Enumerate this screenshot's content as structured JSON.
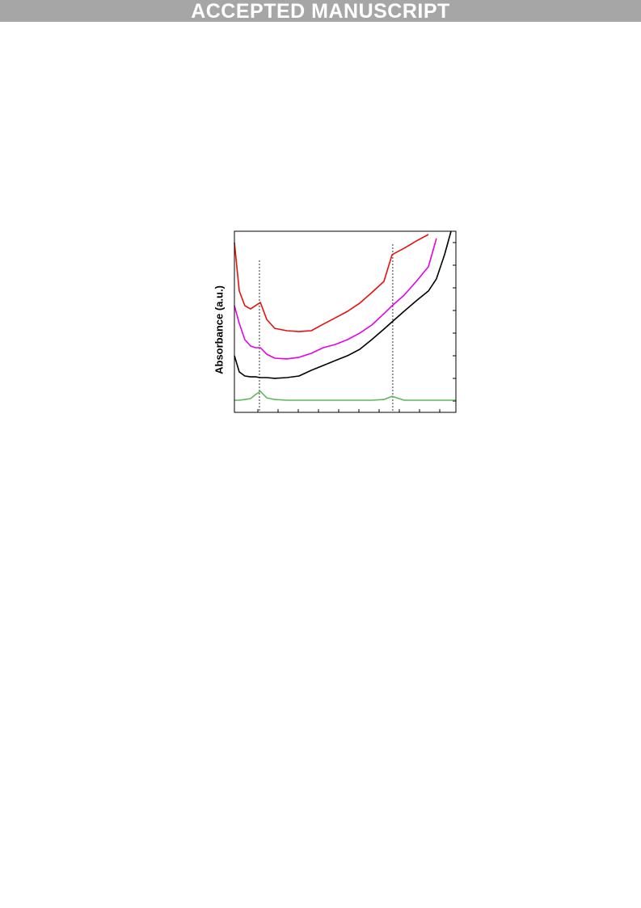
{
  "banner": "ACCEPTED MANUSCRIPT",
  "chart_data": {
    "type": "line",
    "ylabel": "Absorbance (a.u.)",
    "xlim": [
      0,
      100
    ],
    "ylim": [
      0,
      100
    ],
    "x": [
      0,
      2.2,
      4.7,
      7.3,
      9.5,
      11.7,
      14.6,
      18.2,
      23.7,
      29.2,
      34.7,
      40.1,
      45.6,
      51.1,
      56.6,
      62.0,
      67.5,
      71.2,
      76.6,
      82.1,
      87.6,
      91.2,
      94.9,
      97.8,
      100
    ],
    "vlines": [
      11.3,
      71.5
    ],
    "series": [
      {
        "color": "#e8100e",
        "values": [
          93.8,
          67.0,
          58.9,
          57.1,
          58.9,
          60.7,
          51.3,
          46.4,
          45.1,
          44.6,
          45.1,
          48.7,
          52.2,
          55.8,
          60.3,
          66.1,
          72.3,
          87.1,
          90.6,
          94.6,
          98.2,
          null,
          null,
          null,
          null
        ]
      },
      {
        "color": "#e600e6",
        "values": [
          58.9,
          49.1,
          40.2,
          36.6,
          35.7,
          35.7,
          32.1,
          29.9,
          29.5,
          30.4,
          32.6,
          35.7,
          37.5,
          40.2,
          43.8,
          48.2,
          54.5,
          58.9,
          64.7,
          72.3,
          80.4,
          96.0,
          null,
          null,
          null
        ]
      },
      {
        "color": "#000000",
        "values": [
          31.3,
          22.3,
          20.1,
          19.6,
          19.6,
          19.2,
          19.2,
          18.8,
          19.2,
          20.1,
          23.2,
          25.9,
          28.6,
          31.3,
          34.8,
          40.2,
          46.0,
          50.0,
          55.8,
          61.6,
          67.0,
          73.7,
          87.1,
          100,
          null
        ]
      },
      {
        "color": "#5cb85c",
        "values": [
          6.7,
          6.7,
          7.1,
          7.6,
          9.8,
          11.6,
          8.0,
          7.1,
          6.7,
          6.7,
          6.7,
          6.7,
          6.7,
          6.7,
          6.7,
          6.7,
          7.1,
          8.9,
          6.7,
          6.7,
          6.7,
          6.7,
          6.7,
          6.7,
          6.7
        ]
      }
    ]
  }
}
